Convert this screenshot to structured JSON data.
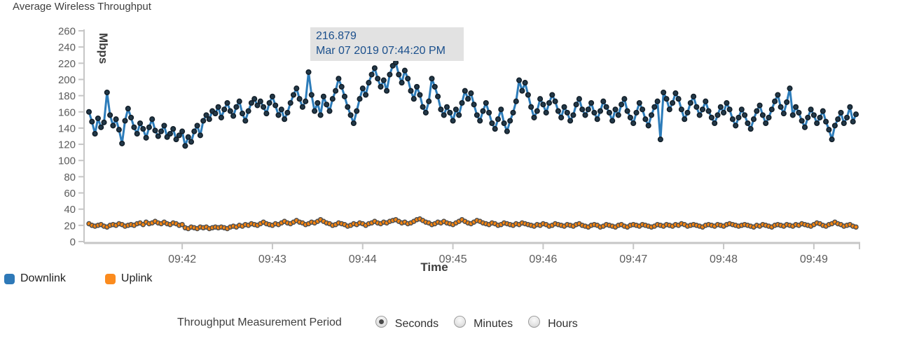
{
  "title": "Average Wireless Throughput",
  "tooltip": {
    "value": "216.879",
    "timestamp": "Mar 07 2019 07:44:20 PM"
  },
  "legend": [
    {
      "label": "Downlink",
      "color": "#2e79b8"
    },
    {
      "label": "Uplink",
      "color": "#fb8b1e"
    }
  ],
  "controls": {
    "label": "Throughput Measurement Period",
    "options": [
      {
        "label": "Seconds",
        "selected": true
      },
      {
        "label": "Minutes",
        "selected": false
      },
      {
        "label": "Hours",
        "selected": false
      }
    ]
  },
  "colors": {
    "axis": "#c6c6c6",
    "tick_label": "#5c5c5c",
    "tooltip_bg": "#e2e2e2",
    "tooltip_text": "#1a4f8c"
  },
  "chart_data": {
    "type": "line",
    "title": "Average Wireless Throughput",
    "xlabel": "Time",
    "ylabel": "Mbps",
    "ylim": [
      0,
      260
    ],
    "ytick_step": 20,
    "grid": false,
    "legend_position": "bottom-left",
    "x_start_time": "09:40:58",
    "x_interval_seconds": 2,
    "total_seconds": 510,
    "x_ticks": [
      {
        "label": "09:42",
        "sec": 62
      },
      {
        "label": "09:43",
        "sec": 122
      },
      {
        "label": "09:44",
        "sec": 182
      },
      {
        "label": "09:45",
        "sec": 242
      },
      {
        "label": "09:46",
        "sec": 302
      },
      {
        "label": "09:47",
        "sec": 362
      },
      {
        "label": "09:48",
        "sec": 422
      },
      {
        "label": "09:49",
        "sec": 482
      }
    ],
    "highlighted_point": {
      "series": "Downlink",
      "value": 216.879,
      "time": "Mar 07 2019 07:44:20 PM"
    },
    "series": [
      {
        "name": "Downlink",
        "color": "#2c7cba",
        "marker_fill": "#223848",
        "marker_stroke": "#121e28",
        "marker_radius": 3.3,
        "width": 3,
        "values": [
          160,
          148,
          133,
          152,
          141,
          147,
          184,
          156,
          143,
          151,
          138,
          121,
          149,
          164,
          153,
          141,
          133,
          146,
          139,
          128,
          141,
          151,
          137,
          130,
          136,
          143,
          129,
          133,
          139,
          126,
          131,
          136,
          118,
          129,
          123,
          136,
          143,
          131,
          149,
          156,
          151,
          161,
          158,
          166,
          153,
          163,
          171,
          161,
          155,
          166,
          173,
          158,
          149,
          161,
          171,
          176,
          168,
          173,
          166,
          158,
          171,
          179,
          168,
          156,
          163,
          151,
          159,
          171,
          181,
          189,
          176,
          166,
          173,
          209,
          181,
          161,
          171,
          156,
          179,
          169,
          161,
          176,
          186,
          201,
          191,
          179,
          166,
          156,
          146,
          161,
          176,
          189,
          181,
          196,
          206,
          214,
          201,
          191,
          199,
          186,
          206,
          216.879,
          221,
          206,
          196,
          211,
          201,
          186,
          176,
          191,
          181,
          166,
          159,
          173,
          201,
          191,
          179,
          163,
          156,
          166,
          159,
          149,
          163,
          156,
          171,
          186,
          176,
          183,
          169,
          156,
          149,
          161,
          171,
          159,
          146,
          139,
          151,
          163,
          146,
          136,
          149,
          159,
          173,
          199,
          186,
          196,
          181,
          166,
          153,
          161,
          176,
          169,
          159,
          171,
          181,
          173,
          161,
          153,
          166,
          159,
          149,
          156,
          169,
          176,
          163,
          156,
          163,
          171,
          159,
          151,
          161,
          173,
          166,
          159,
          149,
          163,
          156,
          169,
          176,
          161,
          153,
          146,
          159,
          171,
          163,
          151,
          143,
          156,
          166,
          173,
          126,
          184,
          176,
          163,
          171,
          183,
          176,
          163,
          151,
          159,
          171,
          179,
          166,
          156,
          163,
          173,
          161,
          153,
          146,
          156,
          166,
          159,
          171,
          163,
          151,
          143,
          153,
          163,
          156,
          146,
          139,
          151,
          161,
          168,
          156,
          146,
          153,
          163,
          173,
          181,
          166,
          158,
          172,
          189,
          156,
          166,
          159,
          149,
          141,
          153,
          163,
          156,
          146,
          153,
          161,
          148,
          138,
          126,
          143,
          151,
          159,
          146,
          153,
          166,
          148,
          157
        ]
      },
      {
        "name": "Uplink",
        "color": "#f28b0d",
        "marker_fill": "#fa850e",
        "marker_stroke": "#4f4f4f",
        "marker_radius": 3,
        "width": 2,
        "values": [
          22,
          20,
          19,
          20,
          21,
          19,
          18,
          20,
          21,
          20,
          22,
          21,
          19,
          20,
          21,
          20,
          22,
          23,
          21,
          24,
          22,
          23,
          25,
          23,
          22,
          24,
          22,
          21,
          23,
          22,
          20,
          21,
          17,
          16,
          18,
          17,
          16,
          18,
          17,
          18,
          16,
          17,
          18,
          17,
          18,
          17,
          16,
          18,
          19,
          18,
          20,
          19,
          21,
          20,
          22,
          21,
          20,
          22,
          24,
          22,
          21,
          20,
          22,
          21,
          23,
          25,
          23,
          22,
          24,
          26,
          24,
          23,
          21,
          22,
          24,
          23,
          25,
          27,
          25,
          23,
          22,
          20,
          21,
          23,
          22,
          21,
          19,
          20,
          22,
          21,
          23,
          22,
          20,
          22,
          23,
          25,
          23,
          22,
          24,
          23,
          25,
          26,
          27,
          25,
          23,
          24,
          22,
          23,
          25,
          27,
          28,
          26,
          24,
          23,
          21,
          22,
          24,
          23,
          25,
          23,
          22,
          21,
          23,
          25,
          27,
          25,
          23,
          22,
          24,
          26,
          25,
          23,
          22,
          21,
          23,
          22,
          20,
          21,
          23,
          22,
          21,
          20,
          22,
          21,
          23,
          22,
          21,
          20,
          19,
          21,
          20,
          22,
          21,
          19,
          20,
          22,
          21,
          20,
          19,
          21,
          20,
          19,
          21,
          22,
          20,
          19,
          18,
          20,
          21,
          20,
          18,
          19,
          21,
          20,
          19,
          18,
          20,
          21,
          19,
          18,
          20,
          21,
          20,
          19,
          21,
          20,
          19,
          18,
          19,
          21,
          20,
          19,
          21,
          20,
          19,
          21,
          20,
          22,
          21,
          19,
          20,
          21,
          20,
          19,
          18,
          20,
          21,
          20,
          19,
          21,
          20,
          19,
          21,
          22,
          21,
          20,
          19,
          20,
          21,
          20,
          19,
          18,
          20,
          19,
          21,
          20,
          19,
          18,
          20,
          21,
          20,
          19,
          21,
          20,
          19,
          21,
          20,
          22,
          21,
          20,
          19,
          21,
          23,
          22,
          20,
          19,
          21,
          22,
          24,
          22,
          21,
          19,
          20,
          21,
          19,
          18
        ]
      }
    ]
  }
}
